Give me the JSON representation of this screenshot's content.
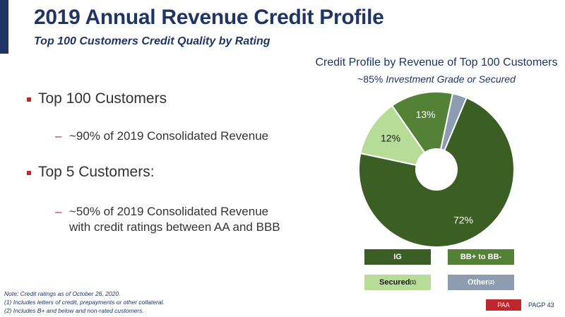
{
  "header": {
    "title": "2019 Annual Revenue Credit Profile",
    "subtitle": "Top 100 Customers Credit Quality by Rating"
  },
  "bullets": [
    {
      "label": "Top 100 Customers",
      "sub": "~90% of 2019 Consolidated Revenue"
    },
    {
      "label": "Top 5 Customers:",
      "sub": "~50% of 2019 Consolidated Revenue\nwith credit ratings between AA and BBB"
    }
  ],
  "sub_dash": "–",
  "chart_data": {
    "type": "pie",
    "title": "Credit Profile by Revenue of Top 100 Customers",
    "subtitle_prefix": "~85% ",
    "subtitle_emphasis": "Investment Grade or Secured",
    "donut": true,
    "categories": [
      "Other",
      "IG",
      "Secured",
      "BB+ to BB-"
    ],
    "values": [
      3,
      72,
      12,
      13
    ],
    "labels": [
      "3%",
      "72%",
      "12%",
      "13%"
    ],
    "colors": [
      "#8e9cb2",
      "#3b5e24",
      "#b6dc98",
      "#538135"
    ],
    "legend": {
      "position": "bottom",
      "items": [
        {
          "label": "IG",
          "sup": "",
          "color": "#3b5e24",
          "text_color": "#ffffff"
        },
        {
          "label": "BB+ to BB-",
          "sup": "",
          "color": "#538135",
          "text_color": "#ffffff"
        },
        {
          "label": "Secured",
          "sup": "(1)",
          "color": "#b6dc98",
          "text_color": "#1a1a1a"
        },
        {
          "label": "Other",
          "sup": "(2)",
          "color": "#8e9cb2",
          "text_color": "#ffffff"
        }
      ]
    }
  },
  "notes": {
    "line0": "Note: Credit ratings as of October 26, 2020.",
    "line1": "(1)     Includes letters of credit, prepayments or other collateral.",
    "line2": "(2)     Includes B+ and below and non-rated customers."
  },
  "footer": {
    "brand": "PAA",
    "text": "PAGP  43"
  }
}
